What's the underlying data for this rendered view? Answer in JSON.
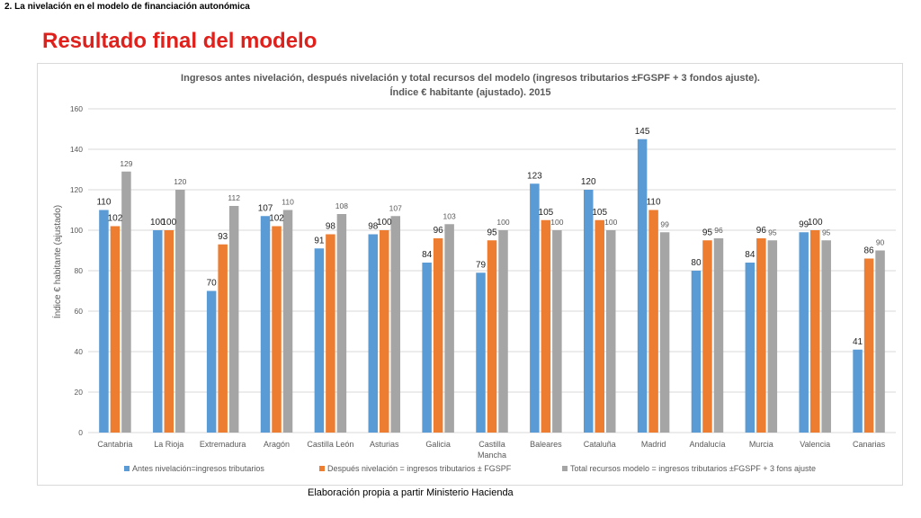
{
  "header": {
    "section": "2. La nivelación en el modelo de financiación autonómica",
    "title": "Resultado final del modelo"
  },
  "source_note": "Elaboración propia a partir Ministerio Hacienda",
  "colors": {
    "title": "#e0201b",
    "series": [
      "#5b9bd5",
      "#ed7d31",
      "#a5a5a5"
    ]
  },
  "chart_data": {
    "type": "bar",
    "title_lines": [
      "Ingresos antes nivelación, después nivelación y total recursos del modelo (ingresos tributarios ±FGSPF + 3 fondos ajuste).",
      "Índice € habitante (ajustado). 2015"
    ],
    "ylabel": "Índice € habitante (ajustado)",
    "ylim": [
      0,
      160
    ],
    "yticks": [
      0,
      20,
      40,
      60,
      80,
      100,
      120,
      140,
      160
    ],
    "grid": true,
    "legend_position": "bottom",
    "categories": [
      [
        "Cantabria"
      ],
      [
        "La Rioja"
      ],
      [
        "Extremadura"
      ],
      [
        "Aragón"
      ],
      [
        "Castilla León"
      ],
      [
        "Asturias"
      ],
      [
        "Galicia"
      ],
      [
        "Castilla",
        "Mancha"
      ],
      [
        "Baleares"
      ],
      [
        "Cataluña"
      ],
      [
        "Madrid"
      ],
      [
        "Andalucía"
      ],
      [
        "Murcia"
      ],
      [
        "Valencia"
      ],
      [
        "Canarias"
      ]
    ],
    "series": [
      {
        "name": "Antes nivelación=ingresos tributarios",
        "values": [
          110,
          100,
          70,
          107,
          91,
          98,
          84,
          79,
          123,
          120,
          145,
          80,
          84,
          99,
          41
        ]
      },
      {
        "name": "Después nivelación = ingresos tributarios ± FGSPF",
        "values": [
          102,
          100,
          93,
          102,
          98,
          100,
          96,
          95,
          105,
          105,
          110,
          95,
          96,
          100,
          86
        ]
      },
      {
        "name": "Total recursos modelo = ingresos tributarios ±FGSPF + 3 fons ajuste",
        "values": [
          129,
          120,
          112,
          110,
          108,
          107,
          103,
          100,
          100,
          100,
          99,
          96,
          95,
          95,
          90
        ]
      }
    ]
  }
}
